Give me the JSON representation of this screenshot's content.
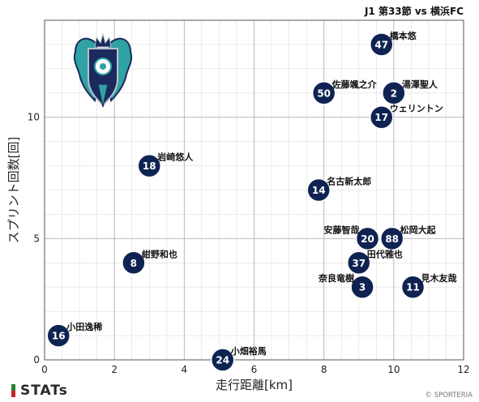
{
  "chart_data": {
    "type": "scatter",
    "title": "J1 第33節 vs 横浜FC",
    "xlabel": "走行距離[km]",
    "ylabel": "スプリント回数[回]",
    "xlim": [
      0,
      12
    ],
    "ylim": [
      0,
      14
    ],
    "x_ticks": [
      0,
      2,
      4,
      6,
      8,
      10,
      12
    ],
    "y_ticks": [
      0,
      5,
      10
    ],
    "grid": true,
    "points": [
      {
        "number": "47",
        "name": "橋本悠",
        "x": 9.65,
        "y": 13
      },
      {
        "number": "50",
        "name": "佐藤颯之介",
        "x": 8.0,
        "y": 11
      },
      {
        "number": "2",
        "name": "湯澤聖人",
        "x": 10.0,
        "y": 11
      },
      {
        "number": "17",
        "name": "ウェリントン",
        "x": 9.65,
        "y": 10
      },
      {
        "number": "18",
        "name": "岩崎悠人",
        "x": 3.0,
        "y": 8
      },
      {
        "number": "14",
        "name": "名古新太郎",
        "x": 7.85,
        "y": 7
      },
      {
        "number": "20",
        "name": "安藤智哉",
        "x": 9.25,
        "y": 5
      },
      {
        "number": "88",
        "name": "松岡大起",
        "x": 9.95,
        "y": 5
      },
      {
        "number": "8",
        "name": "紺野和也",
        "x": 2.55,
        "y": 4
      },
      {
        "number": "37",
        "name": "田代雅也",
        "x": 9.0,
        "y": 4
      },
      {
        "number": "3",
        "name": "奈良竜樹",
        "x": 9.1,
        "y": 3
      },
      {
        "number": "11",
        "name": "見木友哉",
        "x": 10.55,
        "y": 3
      },
      {
        "number": "16",
        "name": "小田逸稀",
        "x": 0.4,
        "y": 1
      },
      {
        "number": "24",
        "name": "小畑裕馬",
        "x": 5.1,
        "y": 0
      }
    ]
  },
  "branding": {
    "logo_text": "STATs",
    "logo_bar_colors": [
      "#2f7d32",
      "#c62828"
    ],
    "credit": "© SPORTERIA",
    "team_emblem": "avispa-fukuoka-emblem",
    "emblem_colors": {
      "navy": "#1a2a5e",
      "teal": "#2fa3a3",
      "silver": "#b8c2cc"
    }
  },
  "colors": {
    "point_fill": "#0f2352",
    "point_text": "#ffffff"
  }
}
